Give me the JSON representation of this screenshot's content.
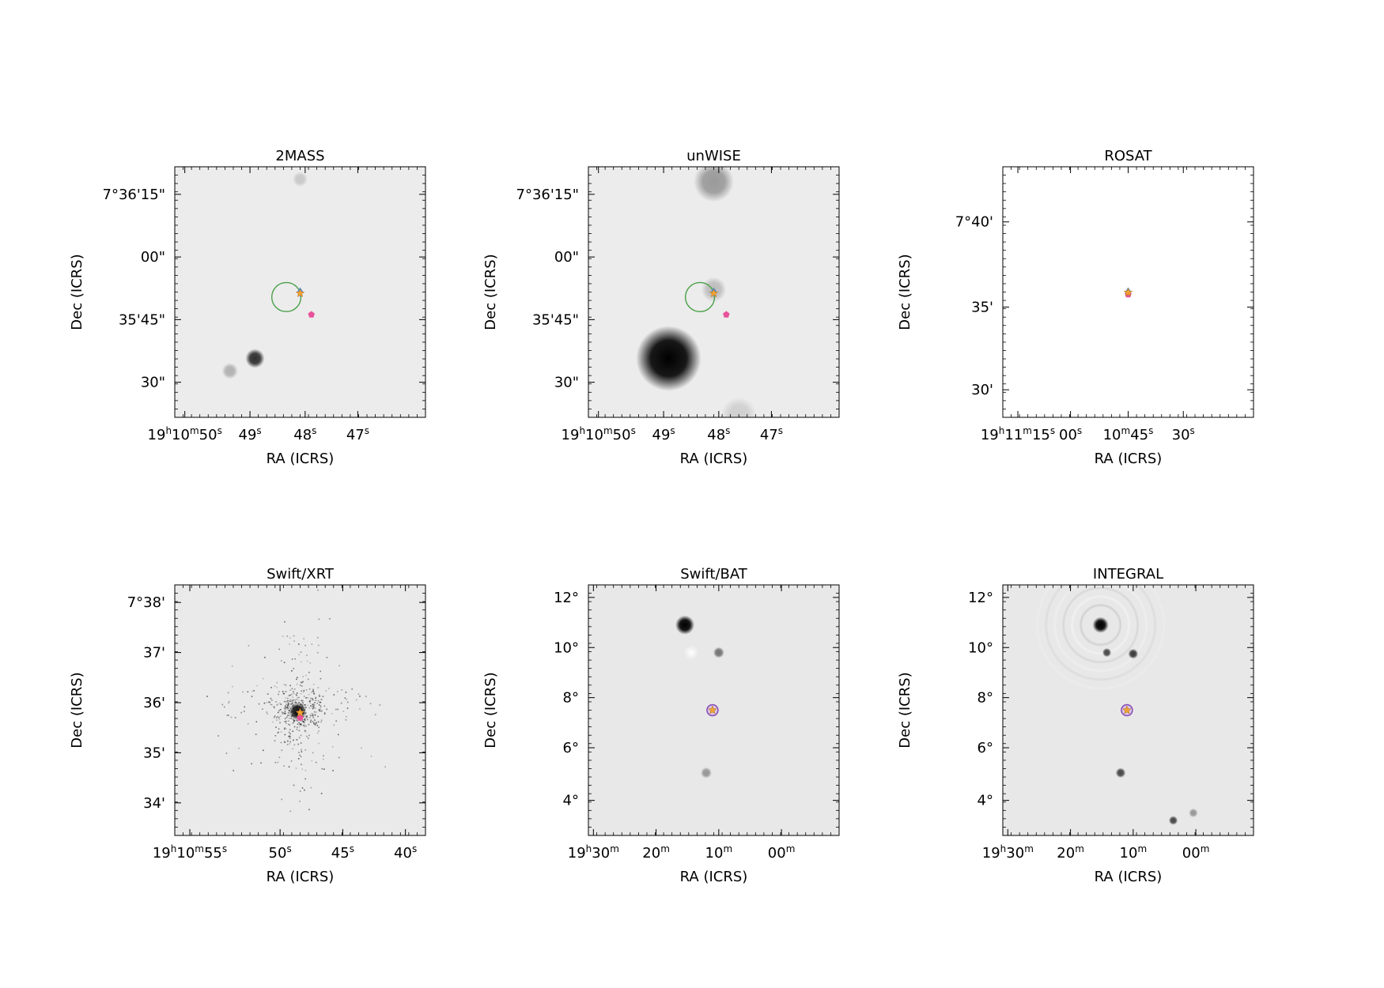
{
  "panels": [
    {
      "title": "2MASS",
      "xlabel": "RA (ICRS)",
      "ylabel": "Dec (ICRS)",
      "bg": "#ececec",
      "yticks": [
        {
          "label": "7°36'15\"",
          "f": 0.11
        },
        {
          "label": "00\"",
          "f": 0.36
        },
        {
          "label": "35'45\"",
          "f": 0.61
        },
        {
          "label": "30\"",
          "f": 0.86
        }
      ],
      "xticks": [
        {
          "parts": [
            [
              "19",
              ""
            ],
            [
              "h",
              "sup"
            ],
            [
              "10",
              ""
            ],
            [
              "m",
              "sup"
            ],
            [
              "50",
              ""
            ],
            [
              "s",
              "sup"
            ]
          ],
          "f": 0.04
        },
        {
          "parts": [
            [
              "49",
              ""
            ],
            [
              "s",
              "sup"
            ]
          ],
          "f": 0.3
        },
        {
          "parts": [
            [
              "48",
              ""
            ],
            [
              "s",
              "sup"
            ]
          ],
          "f": 0.52
        },
        {
          "parts": [
            [
              "47",
              ""
            ],
            [
              "s",
              "sup"
            ]
          ],
          "f": 0.73
        }
      ],
      "sources": [
        {
          "x": 0.32,
          "y": 0.765,
          "r": 0.038,
          "w": 0.8
        },
        {
          "x": 0.22,
          "y": 0.815,
          "r": 0.032,
          "w": 0.25
        },
        {
          "x": 0.5,
          "y": 0.05,
          "r": 0.03,
          "w": 0.15
        }
      ],
      "green_circle": {
        "x": 0.445,
        "y": 0.52,
        "r": 0.058
      },
      "markers": [
        {
          "type": "diamond",
          "x": 0.5,
          "y": 0.5,
          "color": "#4f8fd6"
        },
        {
          "type": "star",
          "x": 0.5,
          "y": 0.505,
          "color": "#f2a233"
        },
        {
          "type": "pentagon",
          "x": 0.545,
          "y": 0.59,
          "color": "#e8529a"
        }
      ]
    },
    {
      "title": "unWISE",
      "xlabel": "RA (ICRS)",
      "ylabel": "Dec (ICRS)",
      "bg": "#ececec",
      "yticks": [
        {
          "label": "7°36'15\"",
          "f": 0.11
        },
        {
          "label": "00\"",
          "f": 0.36
        },
        {
          "label": "35'45\"",
          "f": 0.61
        },
        {
          "label": "30\"",
          "f": 0.86
        }
      ],
      "xticks": [
        {
          "parts": [
            [
              "19",
              ""
            ],
            [
              "h",
              "sup"
            ],
            [
              "10",
              ""
            ],
            [
              "m",
              "sup"
            ],
            [
              "50",
              ""
            ],
            [
              "s",
              "sup"
            ]
          ],
          "f": 0.04
        },
        {
          "parts": [
            [
              "49",
              ""
            ],
            [
              "s",
              "sup"
            ]
          ],
          "f": 0.3
        },
        {
          "parts": [
            [
              "48",
              ""
            ],
            [
              "s",
              "sup"
            ]
          ],
          "f": 0.52
        },
        {
          "parts": [
            [
              "47",
              ""
            ],
            [
              "s",
              "sup"
            ]
          ],
          "f": 0.73
        }
      ],
      "sources": [
        {
          "x": 0.32,
          "y": 0.765,
          "r": 0.13,
          "w": 1.0
        },
        {
          "x": 0.5,
          "y": 0.06,
          "r": 0.08,
          "w": 0.35
        },
        {
          "x": 0.5,
          "y": 0.49,
          "r": 0.05,
          "w": 0.2
        },
        {
          "x": 0.6,
          "y": 0.99,
          "r": 0.07,
          "w": 0.12
        }
      ],
      "green_circle": {
        "x": 0.445,
        "y": 0.52,
        "r": 0.058
      },
      "markers": [
        {
          "type": "diamond",
          "x": 0.5,
          "y": 0.5,
          "color": "#4f8fd6"
        },
        {
          "type": "star",
          "x": 0.5,
          "y": 0.505,
          "color": "#f2a233"
        },
        {
          "type": "pentagon",
          "x": 0.55,
          "y": 0.59,
          "color": "#e8529a"
        }
      ]
    },
    {
      "title": "ROSAT",
      "xlabel": "RA (ICRS)",
      "ylabel": "Dec (ICRS)",
      "bg": "#ffffff",
      "yticks": [
        {
          "label": "7°40'",
          "f": 0.22
        },
        {
          "label": "35'",
          "f": 0.56
        },
        {
          "label": "30'",
          "f": 0.89
        }
      ],
      "xticks": [
        {
          "parts": [
            [
              "19",
              ""
            ],
            [
              "h",
              "sup"
            ],
            [
              "11",
              ""
            ],
            [
              "m",
              "sup"
            ],
            [
              "15",
              ""
            ],
            [
              "s",
              "sup"
            ]
          ],
          "f": 0.06
        },
        {
          "parts": [
            [
              "00",
              ""
            ],
            [
              "s",
              "sup"
            ]
          ],
          "f": 0.27
        },
        {
          "parts": [
            [
              "10",
              ""
            ],
            [
              "m",
              "sup"
            ],
            [
              "45",
              ""
            ],
            [
              "s",
              "sup"
            ]
          ],
          "f": 0.5
        },
        {
          "parts": [
            [
              "30",
              ""
            ],
            [
              "s",
              "sup"
            ]
          ],
          "f": 0.72
        }
      ],
      "sources": [],
      "markers": [
        {
          "type": "diamond",
          "x": 0.5,
          "y": 0.5,
          "color": "#4f8fd6"
        },
        {
          "type": "pentagon",
          "x": 0.5,
          "y": 0.51,
          "color": "#e8529a"
        },
        {
          "type": "star",
          "x": 0.5,
          "y": 0.502,
          "color": "#f2a233"
        }
      ]
    },
    {
      "title": "Swift/XRT",
      "xlabel": "RA (ICRS)",
      "ylabel": "Dec (ICRS)",
      "bg": "#eaeaea",
      "yticks": [
        {
          "label": "7°38'",
          "f": 0.07
        },
        {
          "label": "37'",
          "f": 0.27
        },
        {
          "label": "36'",
          "f": 0.47
        },
        {
          "label": "35'",
          "f": 0.67
        },
        {
          "label": "34'",
          "f": 0.87
        }
      ],
      "xticks": [
        {
          "parts": [
            [
              "19",
              ""
            ],
            [
              "h",
              "sup"
            ],
            [
              "10",
              ""
            ],
            [
              "m",
              "sup"
            ],
            [
              "55",
              ""
            ],
            [
              "s",
              "sup"
            ]
          ],
          "f": 0.06
        },
        {
          "parts": [
            [
              "50",
              ""
            ],
            [
              "s",
              "sup"
            ]
          ],
          "f": 0.42
        },
        {
          "parts": [
            [
              "45",
              ""
            ],
            [
              "s",
              "sup"
            ]
          ],
          "f": 0.67
        },
        {
          "parts": [
            [
              "40",
              ""
            ],
            [
              "s",
              "sup"
            ]
          ],
          "f": 0.92
        }
      ],
      "scatter": {
        "x": 0.49,
        "y": 0.5,
        "n": 520,
        "spread": 0.13
      },
      "sources": [
        {
          "x": 0.49,
          "y": 0.505,
          "r": 0.035,
          "w": 0.9
        }
      ],
      "markers": [
        {
          "type": "pentagon",
          "x": 0.5,
          "y": 0.53,
          "color": "#e8529a"
        },
        {
          "type": "star",
          "x": 0.5,
          "y": 0.51,
          "color": "#f2a233"
        }
      ]
    },
    {
      "title": "Swift/BAT",
      "xlabel": "RA (ICRS)",
      "ylabel": "Dec (ICRS)",
      "bg": "#e8e8e8",
      "yticks": [
        {
          "label": "12°",
          "f": 0.05
        },
        {
          "label": "10°",
          "f": 0.25
        },
        {
          "label": "8°",
          "f": 0.45
        },
        {
          "label": "6°",
          "f": 0.65
        },
        {
          "label": "4°",
          "f": 0.86
        }
      ],
      "xticks": [
        {
          "parts": [
            [
              "19",
              ""
            ],
            [
              "h",
              "sup"
            ],
            [
              "30",
              ""
            ],
            [
              "m",
              "sup"
            ]
          ],
          "f": 0.02
        },
        {
          "parts": [
            [
              "20",
              ""
            ],
            [
              "m",
              "sup"
            ]
          ],
          "f": 0.27
        },
        {
          "parts": [
            [
              "10",
              ""
            ],
            [
              "m",
              "sup"
            ]
          ],
          "f": 0.52
        },
        {
          "parts": [
            [
              "00",
              ""
            ],
            [
              "m",
              "sup"
            ]
          ],
          "f": 0.77
        }
      ],
      "sources": [
        {
          "x": 0.385,
          "y": 0.16,
          "r": 0.038,
          "w": 1.0
        },
        {
          "x": 0.52,
          "y": 0.27,
          "r": 0.022,
          "w": 0.5
        },
        {
          "x": 0.47,
          "y": 0.75,
          "r": 0.022,
          "w": 0.35
        }
      ],
      "white_spot": {
        "x": 0.41,
        "y": 0.27,
        "r": 0.03
      },
      "purple_circle": {
        "x": 0.495,
        "y": 0.5,
        "r": 0.022
      },
      "markers": [
        {
          "type": "star",
          "x": 0.495,
          "y": 0.5,
          "color": "#f2a233"
        }
      ]
    },
    {
      "title": "INTEGRAL",
      "xlabel": "RA (ICRS)",
      "ylabel": "Dec (ICRS)",
      "bg": "#e8e8e8",
      "yticks": [
        {
          "label": "12°",
          "f": 0.05
        },
        {
          "label": "10°",
          "f": 0.25
        },
        {
          "label": "8°",
          "f": 0.45
        },
        {
          "label": "6°",
          "f": 0.65
        },
        {
          "label": "4°",
          "f": 0.86
        }
      ],
      "xticks": [
        {
          "parts": [
            [
              "19",
              ""
            ],
            [
              "h",
              "sup"
            ],
            [
              "30",
              ""
            ],
            [
              "m",
              "sup"
            ]
          ],
          "f": 0.02
        },
        {
          "parts": [
            [
              "20",
              ""
            ],
            [
              "m",
              "sup"
            ]
          ],
          "f": 0.27
        },
        {
          "parts": [
            [
              "10",
              ""
            ],
            [
              "m",
              "sup"
            ]
          ],
          "f": 0.52
        },
        {
          "parts": [
            [
              "00",
              ""
            ],
            [
              "m",
              "sup"
            ]
          ],
          "f": 0.77
        }
      ],
      "rings": {
        "x": 0.39,
        "y": 0.16
      },
      "sources": [
        {
          "x": 0.39,
          "y": 0.16,
          "r": 0.032,
          "w": 1.0
        },
        {
          "x": 0.415,
          "y": 0.27,
          "r": 0.018,
          "w": 0.7
        },
        {
          "x": 0.52,
          "y": 0.275,
          "r": 0.02,
          "w": 0.75
        },
        {
          "x": 0.47,
          "y": 0.75,
          "r": 0.02,
          "w": 0.7
        },
        {
          "x": 0.68,
          "y": 0.94,
          "r": 0.018,
          "w": 0.7
        },
        {
          "x": 0.76,
          "y": 0.91,
          "r": 0.018,
          "w": 0.35
        }
      ],
      "purple_circle": {
        "x": 0.495,
        "y": 0.5,
        "r": 0.022
      },
      "markers": [
        {
          "type": "star",
          "x": 0.495,
          "y": 0.5,
          "color": "#f2a233"
        }
      ]
    }
  ],
  "colors": {
    "green_circle": "#4aa04a",
    "purple_circle": "#8a50b8"
  }
}
